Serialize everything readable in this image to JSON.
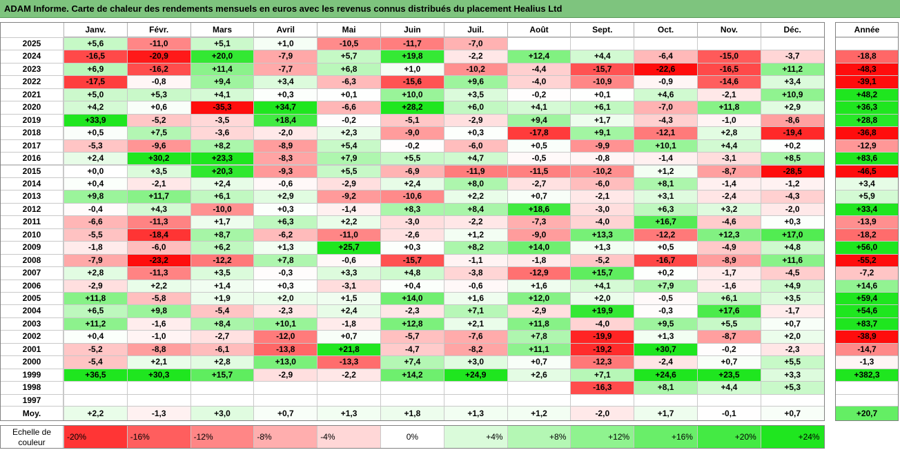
{
  "window_title": "ADAM Informe. Carte de chaleur des rendements mensuels en euros avec les revenus connus distribués du placement Healius Ltd",
  "colors": {
    "title_bg": "#7ec47e",
    "positive": "#00e000",
    "negative": "#ff0000",
    "neutral": "#ffffff"
  },
  "labels": {
    "avg": "Moy.",
    "scale": "Echelle de couleur",
    "year_col": "Année"
  },
  "months": [
    "Janv.",
    "Févr.",
    "Mars",
    "Avril",
    "Mai",
    "Juin",
    "Juil.",
    "Août",
    "Sept.",
    "Oct.",
    "Nov.",
    "Déc."
  ],
  "scale": [
    "-20%",
    "-16%",
    "-12%",
    "-8%",
    "-4%",
    "0%",
    "+4%",
    "+8%",
    "+12%",
    "+16%",
    "+20%",
    "+24%"
  ],
  "chart_data": {
    "type": "heatmap",
    "title": "ADAM Informe. Carte de chaleur des rendements mensuels en euros avec les revenus connus distribués du placement Healius Ltd",
    "columns": [
      "Janv.",
      "Févr.",
      "Mars",
      "Avril",
      "Mai",
      "Juin",
      "Juil.",
      "Août",
      "Sept.",
      "Oct.",
      "Nov.",
      "Déc.",
      "Année"
    ],
    "rows": [
      {
        "year": "2025",
        "months": [
          "+5,6",
          "-11,0",
          "+5,1",
          "+1,0",
          "-10,5",
          "-11,7",
          "-7,0",
          "",
          "",
          "",
          "",
          ""
        ],
        "annual": ""
      },
      {
        "year": "2024",
        "months": [
          "-16,5",
          "-20,9",
          "+20,0",
          "-7,9",
          "+5,7",
          "+19,8",
          "-2,2",
          "+12,4",
          "+4,4",
          "-6,4",
          "-15,0",
          "-3,7"
        ],
        "annual": "-18,8"
      },
      {
        "year": "2023",
        "months": [
          "+6,9",
          "-16,2",
          "+11,4",
          "-7,7",
          "+6,8",
          "+1,0",
          "-10,2",
          "-4,4",
          "-15,7",
          "-22,6",
          "-16,5",
          "+11,2"
        ],
        "annual": "-48,3"
      },
      {
        "year": "2022",
        "months": [
          "-17,5",
          "-0,8",
          "+9,4",
          "+3,4",
          "-6,3",
          "-15,6",
          "+9,6",
          "-4,0",
          "-10,9",
          "-0,9",
          "-14,6",
          "+3,4"
        ],
        "annual": "-39,1"
      },
      {
        "year": "2021",
        "months": [
          "+5,0",
          "+5,3",
          "+4,1",
          "+0,3",
          "+0,1",
          "+10,0",
          "+3,5",
          "-0,2",
          "+0,1",
          "+4,6",
          "-2,1",
          "+10,9"
        ],
        "annual": "+48,2"
      },
      {
        "year": "2020",
        "months": [
          "+4,2",
          "+0,6",
          "-35,3",
          "+34,7",
          "-6,6",
          "+28,2",
          "+6,0",
          "+4,1",
          "+6,1",
          "-7,0",
          "+11,8",
          "+2,9"
        ],
        "annual": "+36,3"
      },
      {
        "year": "2019",
        "months": [
          "+33,9",
          "-5,2",
          "-3,5",
          "+18,4",
          "-0,2",
          "-5,1",
          "-2,9",
          "+9,4",
          "+1,7",
          "-4,3",
          "-1,0",
          "-8,6"
        ],
        "annual": "+28,8"
      },
      {
        "year": "2018",
        "months": [
          "+0,5",
          "+7,5",
          "-3,6",
          "-2,0",
          "+2,3",
          "-9,0",
          "+0,3",
          "-17,8",
          "+9,1",
          "-12,1",
          "+2,8",
          "-19,4"
        ],
        "annual": "-36,8"
      },
      {
        "year": "2017",
        "months": [
          "-5,3",
          "-9,6",
          "+8,2",
          "-8,9",
          "+5,4",
          "-0,2",
          "-6,0",
          "+0,5",
          "-9,9",
          "+10,1",
          "+4,4",
          "+0,2"
        ],
        "annual": "-12,9"
      },
      {
        "year": "2016",
        "months": [
          "+2,4",
          "+30,2",
          "+23,3",
          "-8,3",
          "+7,9",
          "+5,5",
          "+4,7",
          "-0,5",
          "-0,8",
          "-1,4",
          "-3,1",
          "+8,5"
        ],
        "annual": "+83,6"
      },
      {
        "year": "2015",
        "months": [
          "+0,0",
          "+3,5",
          "+20,3",
          "-9,3",
          "+5,5",
          "-6,9",
          "-11,9",
          "-11,5",
          "-10,2",
          "+1,2",
          "-8,7",
          "-28,5"
        ],
        "annual": "-46,5"
      },
      {
        "year": "2014",
        "months": [
          "+0,4",
          "-2,1",
          "+2,4",
          "-0,6",
          "-2,9",
          "+2,4",
          "+8,0",
          "-2,7",
          "-6,0",
          "+8,1",
          "-1,4",
          "-1,2"
        ],
        "annual": "+3,4"
      },
      {
        "year": "2013",
        "months": [
          "+9,8",
          "+11,7",
          "+6,1",
          "+2,9",
          "-9,2",
          "-10,6",
          "+2,2",
          "+0,7",
          "-2,1",
          "+3,1",
          "-2,4",
          "-4,3"
        ],
        "annual": "+5,9"
      },
      {
        "year": "2012",
        "months": [
          "-0,4",
          "+4,3",
          "-10,0",
          "+0,3",
          "-1,4",
          "+8,3",
          "+8,4",
          "+18,6",
          "-3,0",
          "+6,3",
          "+3,2",
          "-2,0"
        ],
        "annual": "+33,4"
      },
      {
        "year": "2011",
        "months": [
          "-6,6",
          "-11,3",
          "+1,7",
          "+6,3",
          "+2,2",
          "-3,0",
          "-2,2",
          "-7,3",
          "-4,0",
          "+16,7",
          "-4,6",
          "+0,3"
        ],
        "annual": "-13,9"
      },
      {
        "year": "2010",
        "months": [
          "-5,5",
          "-18,4",
          "+8,7",
          "-6,2",
          "-11,0",
          "-2,6",
          "+1,2",
          "-9,0",
          "+13,3",
          "-12,2",
          "+12,3",
          "+17,0"
        ],
        "annual": "-18,2"
      },
      {
        "year": "2009",
        "months": [
          "-1,8",
          "-6,0",
          "+6,2",
          "+1,3",
          "+25,7",
          "+0,3",
          "+8,2",
          "+14,0",
          "+1,3",
          "+0,5",
          "-4,9",
          "+4,8"
        ],
        "annual": "+56,0"
      },
      {
        "year": "2008",
        "months": [
          "-7,9",
          "-23,2",
          "-12,2",
          "+7,8",
          "-0,6",
          "-15,7",
          "-1,1",
          "-1,8",
          "-5,2",
          "-16,7",
          "-8,9",
          "+11,6"
        ],
        "annual": "-55,2"
      },
      {
        "year": "2007",
        "months": [
          "+2,8",
          "-11,3",
          "+3,5",
          "-0,3",
          "+3,3",
          "+4,8",
          "-3,8",
          "-12,9",
          "+15,7",
          "+0,2",
          "-1,7",
          "-4,5"
        ],
        "annual": "-7,2"
      },
      {
        "year": "2006",
        "months": [
          "-2,9",
          "+2,2",
          "+1,4",
          "+0,3",
          "-3,1",
          "+0,4",
          "-0,6",
          "+1,6",
          "+4,1",
          "+7,9",
          "-1,6",
          "+4,9"
        ],
        "annual": "+14,6"
      },
      {
        "year": "2005",
        "months": [
          "+11,8",
          "-5,8",
          "+1,9",
          "+2,0",
          "+1,5",
          "+14,0",
          "+1,6",
          "+12,0",
          "+2,0",
          "-0,5",
          "+6,1",
          "+3,5"
        ],
        "annual": "+59,4"
      },
      {
        "year": "2004",
        "months": [
          "+6,5",
          "+9,8",
          "-5,4",
          "-2,3",
          "+2,4",
          "-2,3",
          "+7,1",
          "-2,9",
          "+19,9",
          "-0,3",
          "+17,6",
          "-1,7"
        ],
        "annual": "+54,6"
      },
      {
        "year": "2003",
        "months": [
          "+11,2",
          "-1,6",
          "+8,4",
          "+10,1",
          "-1,8",
          "+12,8",
          "+2,1",
          "+11,8",
          "-4,0",
          "+9,5",
          "+5,5",
          "+0,7"
        ],
        "annual": "+83,7"
      },
      {
        "year": "2002",
        "months": [
          "+0,4",
          "-1,0",
          "-2,7",
          "-12,0",
          "+0,7",
          "-5,7",
          "-7,6",
          "+7,8",
          "-19,9",
          "+1,3",
          "-8,7",
          "+2,0"
        ],
        "annual": "-38,9"
      },
      {
        "year": "2001",
        "months": [
          "-5,2",
          "-8,8",
          "-6,1",
          "-13,8",
          "+21,8",
          "-4,7",
          "-8,2",
          "+11,1",
          "-19,2",
          "+30,7",
          "-0,2",
          "-2,3"
        ],
        "annual": "-14,7"
      },
      {
        "year": "2000",
        "months": [
          "-5,4",
          "+2,1",
          "+2,8",
          "+13,0",
          "-13,3",
          "+7,4",
          "+3,0",
          "+0,7",
          "-12,3",
          "-2,4",
          "+0,7",
          "+5,5"
        ],
        "annual": "-1,3"
      },
      {
        "year": "1999",
        "months": [
          "+36,5",
          "+30,3",
          "+15,7",
          "-2,9",
          "-2,2",
          "+14,2",
          "+24,9",
          "+2,6",
          "+7,1",
          "+24,6",
          "+23,5",
          "+3,3"
        ],
        "annual": "+382,3"
      },
      {
        "year": "1998",
        "months": [
          "",
          "",
          "",
          "",
          "",
          "",
          "",
          "",
          "-16,3",
          "+8,1",
          "+4,4",
          "+5,3"
        ],
        "annual": ""
      },
      {
        "year": "1997",
        "months": [
          "",
          "",
          "",
          "",
          "",
          "",
          "",
          "",
          "",
          "",
          "",
          ""
        ],
        "annual": ""
      }
    ],
    "average": {
      "months": [
        "+2,2",
        "-1,3",
        "+3,0",
        "+0,7",
        "+1,3",
        "+1,8",
        "+1,3",
        "+1,2",
        "-2,0",
        "+1,7",
        "-0,1",
        "+0,7"
      ],
      "annual": "+20,7"
    },
    "color_scale": {
      "min": -20,
      "max": 24,
      "step": 4
    }
  }
}
